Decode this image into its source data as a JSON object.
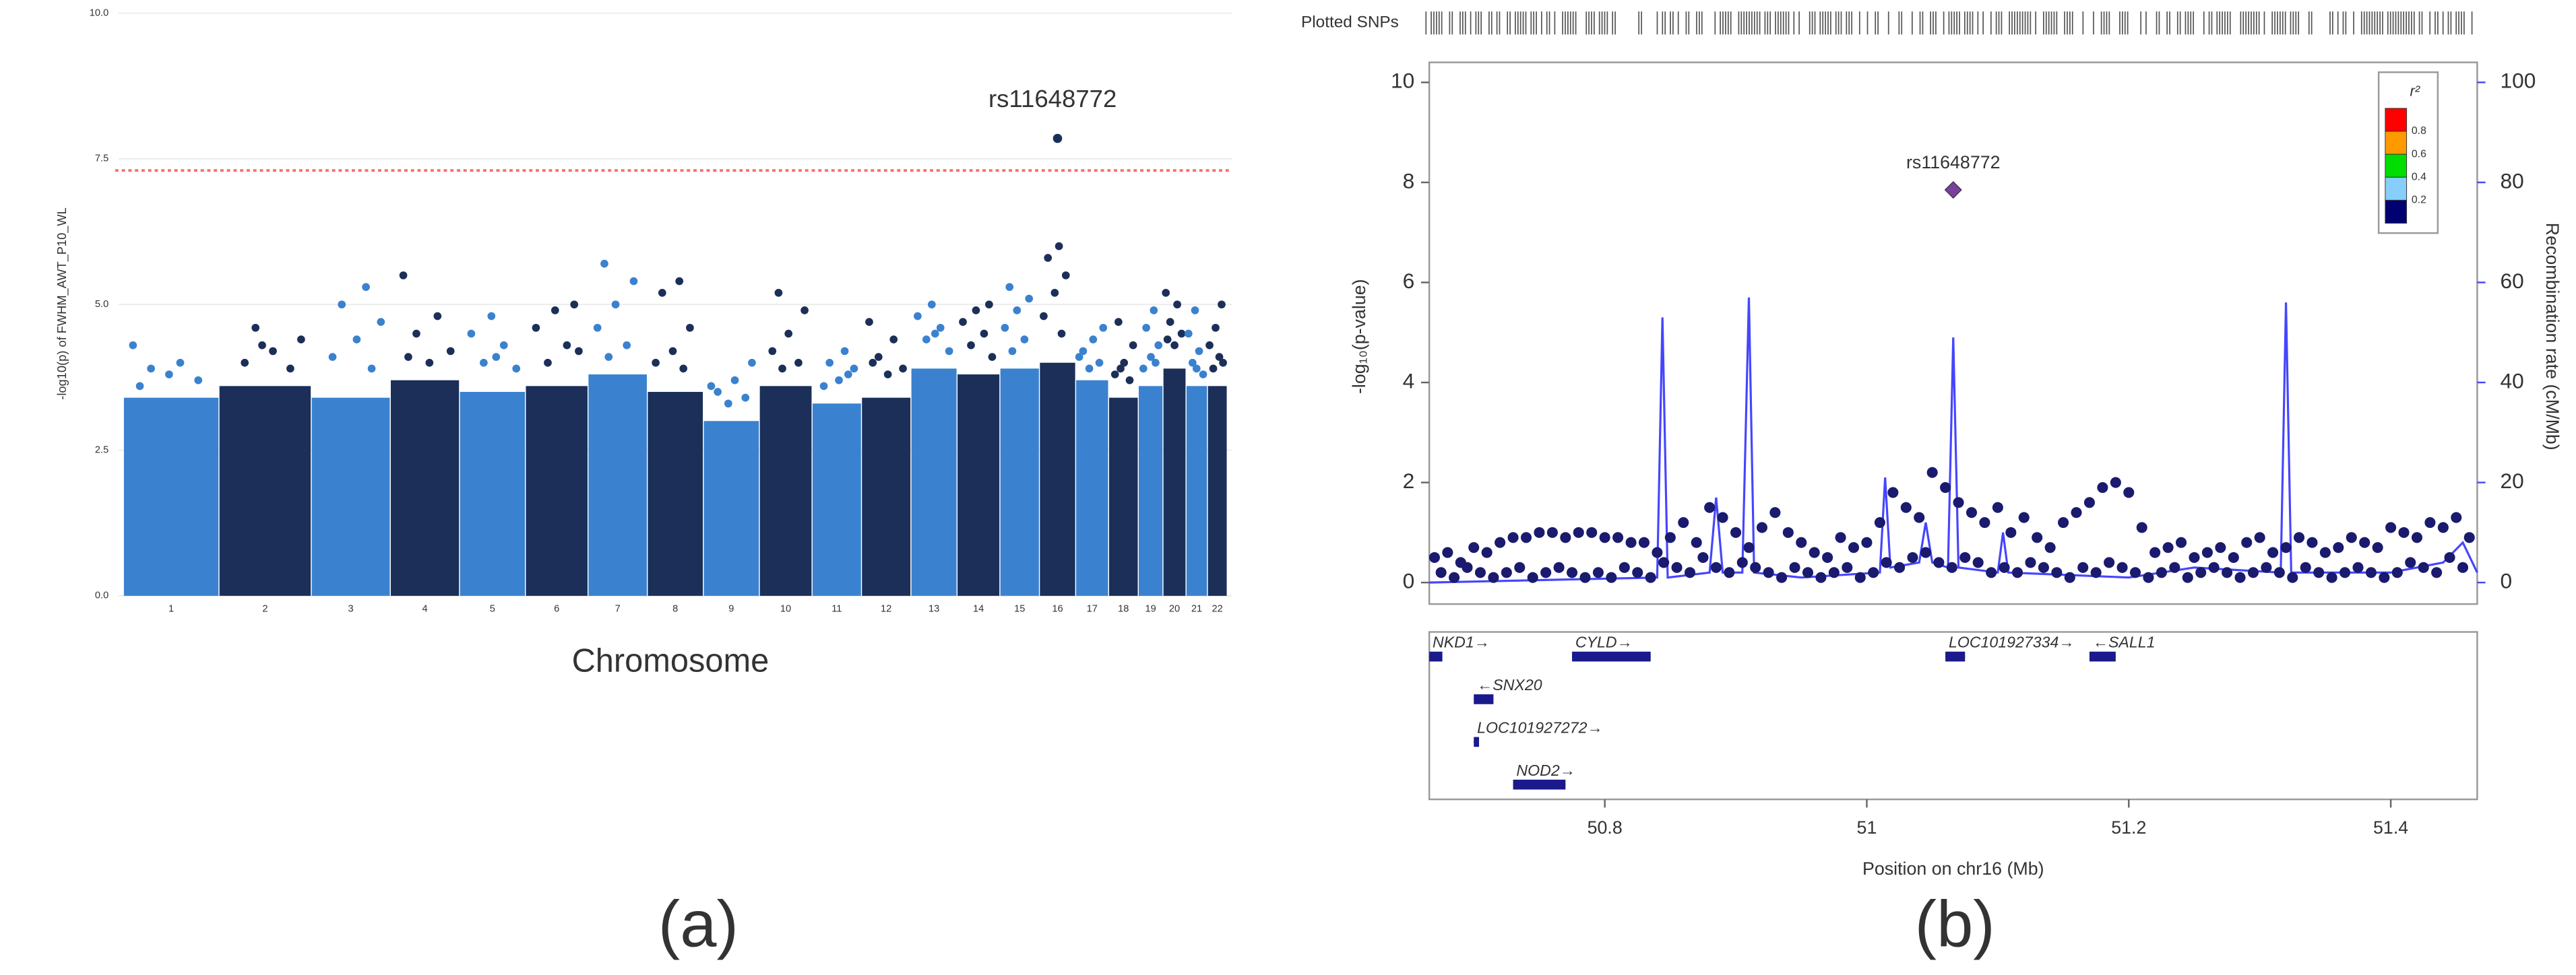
{
  "chart_data": [
    {
      "type": "manhattan",
      "ylabel": "-log10(p) of FWHM_AWT_P10_WL",
      "xlabel": "Chromosome",
      "caption": "(a)",
      "ylim": [
        0,
        10
      ],
      "yticks": [
        {
          "value": 0,
          "label": "0.0"
        },
        {
          "value": 2.5,
          "label": "2.5"
        },
        {
          "value": 5,
          "label": "5.0"
        },
        {
          "value": 7.5,
          "label": "7.5"
        },
        {
          "value": 10,
          "label": "10.0"
        }
      ],
      "grid": true,
      "threshold": {
        "value": 7.3,
        "color": "#ff6b6b"
      },
      "colors": [
        "#3a82cf",
        "#1b2f58"
      ],
      "chromosomes": [
        {
          "label": "1",
          "cloud": 3.4,
          "values": [
            4.3,
            4.0,
            3.9,
            3.7,
            3.8,
            3.6
          ]
        },
        {
          "label": "2",
          "cloud": 3.6,
          "values": [
            4.6,
            4.4,
            4.2,
            4.0,
            3.9,
            4.3
          ]
        },
        {
          "label": "3",
          "cloud": 3.4,
          "values": [
            5.3,
            5.0,
            4.7,
            4.4,
            4.1,
            3.9
          ]
        },
        {
          "label": "4",
          "cloud": 3.7,
          "values": [
            5.5,
            4.8,
            4.5,
            4.2,
            4.0,
            4.1
          ]
        },
        {
          "label": "5",
          "cloud": 3.5,
          "values": [
            4.8,
            4.5,
            4.3,
            4.0,
            3.9,
            4.1
          ]
        },
        {
          "label": "6",
          "cloud": 3.6,
          "values": [
            5.0,
            4.9,
            4.6,
            4.3,
            4.0,
            4.2
          ]
        },
        {
          "label": "7",
          "cloud": 3.8,
          "values": [
            5.7,
            5.4,
            5.0,
            4.6,
            4.3,
            4.1
          ]
        },
        {
          "label": "8",
          "cloud": 3.5,
          "values": [
            5.4,
            5.2,
            4.6,
            4.2,
            4.0,
            3.9
          ]
        },
        {
          "label": "9",
          "cloud": 3.0,
          "values": [
            4.0,
            3.7,
            3.5,
            3.4,
            3.3,
            3.6
          ]
        },
        {
          "label": "10",
          "cloud": 3.6,
          "values": [
            5.2,
            4.9,
            4.5,
            4.2,
            4.0,
            3.9
          ]
        },
        {
          "label": "11",
          "cloud": 3.3,
          "values": [
            4.2,
            4.0,
            3.9,
            3.7,
            3.6,
            3.8
          ]
        },
        {
          "label": "12",
          "cloud": 3.4,
          "values": [
            4.7,
            4.4,
            4.1,
            3.9,
            3.8,
            4.0
          ]
        },
        {
          "label": "13",
          "cloud": 3.9,
          "values": [
            5.0,
            4.8,
            4.6,
            4.4,
            4.2,
            4.5
          ]
        },
        {
          "label": "14",
          "cloud": 3.8,
          "values": [
            5.0,
            4.9,
            4.7,
            4.5,
            4.3,
            4.1
          ]
        },
        {
          "label": "15",
          "cloud": 3.9,
          "values": [
            5.3,
            5.1,
            4.9,
            4.6,
            4.4,
            4.2
          ]
        },
        {
          "label": "16",
          "cloud": 4.0,
          "values": [
            6.0,
            5.8,
            5.5,
            5.2,
            4.8,
            4.5
          ],
          "lead_snp": {
            "name": "rs11648772",
            "value": 7.85
          }
        },
        {
          "label": "17",
          "cloud": 3.7,
          "values": [
            4.6,
            4.4,
            4.2,
            4.0,
            3.9,
            4.1
          ]
        },
        {
          "label": "18",
          "cloud": 3.4,
          "values": [
            4.7,
            4.3,
            4.0,
            3.8,
            3.7,
            3.9
          ]
        },
        {
          "label": "19",
          "cloud": 3.6,
          "values": [
            4.9,
            4.6,
            4.3,
            4.1,
            3.9,
            4.0
          ]
        },
        {
          "label": "20",
          "cloud": 3.9,
          "values": [
            5.2,
            5.0,
            4.7,
            4.5,
            4.3,
            4.4
          ]
        },
        {
          "label": "21",
          "cloud": 3.6,
          "values": [
            4.9,
            4.5,
            4.2,
            4.0,
            3.8,
            3.9
          ]
        },
        {
          "label": "22",
          "cloud": 3.6,
          "values": [
            5.0,
            4.6,
            4.3,
            4.1,
            3.9,
            4.0
          ]
        }
      ]
    },
    {
      "type": "locuszoom",
      "caption": "(b)",
      "rug_label": "Plotted SNPs",
      "xlabel": "Position on chr16 (Mb)",
      "ylabel": "-log₁₀(p-value)",
      "y2label": "Recombination rate (cM/Mb)",
      "xlim": [
        50.666,
        51.466
      ],
      "xticks": [
        50.8,
        51,
        51.2,
        51.4
      ],
      "ylim": [
        -0.43,
        10.4
      ],
      "yticks": [
        0,
        2,
        4,
        6,
        8,
        10
      ],
      "y2lim": [
        -4.3,
        104
      ],
      "y2ticks": [
        0,
        20,
        40,
        60,
        80,
        100
      ],
      "point_color": "#1a1a6e",
      "points": {
        "x": [
          50.67,
          50.68,
          50.69,
          50.7,
          50.71,
          50.72,
          50.73,
          50.74,
          50.75,
          50.76,
          50.77,
          50.78,
          50.79,
          50.8,
          50.81,
          50.82,
          50.83,
          50.84,
          50.85,
          50.86,
          50.87,
          50.88,
          50.89,
          50.9,
          50.91,
          50.92,
          50.93,
          50.94,
          50.95,
          50.96,
          50.97,
          50.98,
          50.99,
          51.0,
          51.01,
          51.02,
          51.03,
          51.04,
          51.05,
          51.06,
          51.07,
          51.08,
          51.09,
          51.1,
          51.11,
          51.12,
          51.13,
          51.14,
          51.15,
          51.16,
          51.17,
          51.18,
          51.19,
          51.2,
          51.21,
          51.22,
          51.23,
          51.24,
          51.25,
          51.26,
          51.27,
          51.28,
          51.29,
          51.3,
          51.31,
          51.32,
          51.33,
          51.34,
          51.35,
          51.36,
          51.37,
          51.38,
          51.39,
          51.4,
          51.41,
          51.42,
          51.43,
          51.44,
          51.45,
          51.46,
          50.675,
          50.685,
          50.695,
          50.705,
          50.715,
          50.725,
          50.735,
          50.745,
          50.755,
          50.765,
          50.775,
          50.785,
          50.795,
          50.805,
          50.815,
          50.825,
          50.835,
          50.845,
          50.855,
          50.865,
          50.875,
          50.885,
          50.895,
          50.905,
          50.915,
          50.925,
          50.935,
          50.945,
          50.955,
          50.965,
          50.975,
          50.985,
          50.995,
          51.005,
          51.015,
          51.025,
          51.035,
          51.045,
          51.055,
          51.065,
          51.075,
          51.085,
          51.095,
          51.105,
          51.115,
          51.125,
          51.135,
          51.145,
          51.155,
          51.165,
          51.175,
          51.185,
          51.195,
          51.205,
          51.215,
          51.225,
          51.235,
          51.245,
          51.255,
          51.265,
          51.275,
          51.285,
          51.295,
          51.305,
          51.315,
          51.325,
          51.335,
          51.345,
          51.355,
          51.365,
          51.375,
          51.385,
          51.395,
          51.405,
          51.415,
          51.425,
          51.435,
          51.445,
          51.455
        ],
        "y": [
          0.5,
          0.6,
          0.4,
          0.7,
          0.6,
          0.8,
          0.9,
          0.9,
          1.0,
          1.0,
          0.9,
          1.0,
          1.0,
          0.9,
          0.9,
          0.8,
          0.8,
          0.6,
          0.9,
          1.2,
          0.8,
          1.5,
          1.3,
          1.0,
          0.7,
          1.1,
          1.4,
          1.0,
          0.8,
          0.6,
          0.5,
          0.9,
          0.7,
          0.8,
          1.2,
          1.8,
          1.5,
          1.3,
          2.2,
          1.9,
          1.6,
          1.4,
          1.2,
          1.5,
          1.0,
          1.3,
          0.9,
          0.7,
          1.2,
          1.4,
          1.6,
          1.9,
          2.0,
          1.8,
          1.1,
          0.6,
          0.7,
          0.8,
          0.5,
          0.6,
          0.7,
          0.5,
          0.8,
          0.9,
          0.6,
          0.7,
          0.9,
          0.8,
          0.6,
          0.7,
          0.9,
          0.8,
          0.7,
          1.1,
          1.0,
          0.9,
          1.2,
          1.1,
          1.3,
          0.9,
          0.2,
          0.1,
          0.3,
          0.2,
          0.1,
          0.2,
          0.3,
          0.1,
          0.2,
          0.3,
          0.2,
          0.1,
          0.2,
          0.1,
          0.3,
          0.2,
          0.1,
          0.4,
          0.3,
          0.2,
          0.5,
          0.3,
          0.2,
          0.4,
          0.3,
          0.2,
          0.1,
          0.3,
          0.2,
          0.1,
          0.2,
          0.3,
          0.1,
          0.2,
          0.4,
          0.3,
          0.5,
          0.6,
          0.4,
          0.3,
          0.5,
          0.4,
          0.2,
          0.3,
          0.2,
          0.4,
          0.3,
          0.2,
          0.1,
          0.3,
          0.2,
          0.4,
          0.3,
          0.2,
          0.1,
          0.2,
          0.3,
          0.1,
          0.2,
          0.3,
          0.2,
          0.1,
          0.2,
          0.3,
          0.2,
          0.1,
          0.3,
          0.2,
          0.1,
          0.2,
          0.3,
          0.2,
          0.1,
          0.2,
          0.4,
          0.3,
          0.2,
          0.5,
          0.3
        ]
      },
      "lead": {
        "name": "rs11648772",
        "x": 51.066,
        "y": 7.85,
        "color": "#7b3fa0"
      },
      "recombination": {
        "color": "#4545ff",
        "x": [
          50.666,
          50.84,
          50.844,
          50.848,
          50.88,
          50.885,
          50.89,
          50.905,
          50.91,
          50.914,
          50.95,
          51.01,
          51.014,
          51.018,
          51.04,
          51.045,
          51.05,
          51.062,
          51.066,
          51.07,
          51.1,
          51.104,
          51.108,
          51.2,
          51.25,
          51.316,
          51.32,
          51.324,
          51.4,
          51.44,
          51.455,
          51.466
        ],
        "values": [
          0,
          1,
          53,
          1,
          2,
          17,
          2,
          2,
          57,
          2,
          1,
          2,
          21,
          3,
          4,
          12,
          4,
          3,
          49,
          3,
          2,
          10,
          2,
          1,
          3,
          2,
          56,
          2,
          2,
          4,
          8,
          2
        ]
      },
      "legend": {
        "title": "r²",
        "colors": [
          "#ff0000",
          "#ff9900",
          "#00dd00",
          "#87cefa",
          "#000070"
        ],
        "ticks": [
          0.2,
          0.4,
          0.6,
          0.8
        ]
      },
      "gene_color": "#1a1a8c",
      "genes": [
        {
          "label": "NKD1→",
          "start": 50.666,
          "end": 50.676,
          "row": 0
        },
        {
          "label": "CYLD→",
          "start": 50.775,
          "end": 50.835,
          "row": 0
        },
        {
          "label": "LOC101927334→",
          "start": 51.06,
          "end": 51.075,
          "row": 0
        },
        {
          "label": "←SALL1",
          "start": 51.17,
          "end": 51.19,
          "row": 0
        },
        {
          "label": "←SNX20",
          "start": 50.7,
          "end": 50.715,
          "row": 1
        },
        {
          "label": "LOC101927272→",
          "start": 50.7,
          "end": 50.704,
          "row": 2
        },
        {
          "label": "NOD2→",
          "start": 50.73,
          "end": 50.77,
          "row": 3
        }
      ]
    }
  ]
}
